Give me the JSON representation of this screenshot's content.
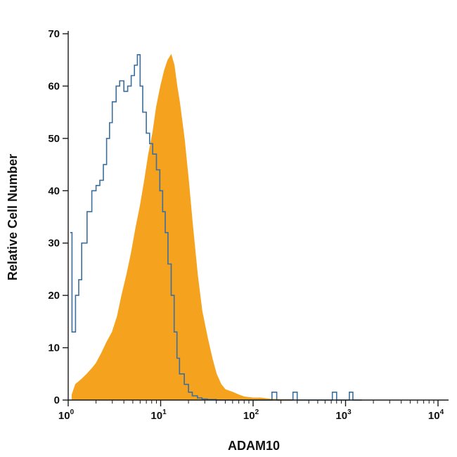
{
  "chart_data": {
    "type": "area",
    "xlabel": "ADAM10",
    "ylabel": "Relative Cell Number",
    "xscale": "log",
    "xlim": [
      1,
      10000
    ],
    "ylim": [
      0,
      70
    ],
    "x_ticks": [
      {
        "value": 1,
        "base": "10",
        "exp": "0"
      },
      {
        "value": 10,
        "base": "10",
        "exp": "1"
      },
      {
        "value": 100,
        "base": "10",
        "exp": "2"
      },
      {
        "value": 1000,
        "base": "10",
        "exp": "3"
      },
      {
        "value": 10000,
        "base": "10",
        "exp": "4"
      }
    ],
    "y_ticks": [
      "0",
      "10",
      "20",
      "30",
      "40",
      "50",
      "60",
      "70"
    ],
    "colors": {
      "filled": "#F5A21E",
      "outline": "#3C6E9E",
      "axis": "#1a1a1a"
    },
    "series": [
      {
        "style": "filled",
        "x": [
          1.1,
          1.2,
          1.4,
          1.6,
          1.8,
          2.0,
          2.3,
          2.6,
          3.0,
          3.4,
          3.8,
          4.3,
          4.8,
          5.4,
          6.0,
          6.7,
          7.4,
          8.2,
          9.0,
          10,
          11,
          12,
          13,
          14,
          15,
          16,
          18,
          20,
          22,
          25,
          28,
          32,
          36,
          40,
          45,
          50,
          60,
          70,
          80,
          100,
          120,
          150,
          200,
          250,
          300
        ],
        "y": [
          1,
          3,
          4,
          5,
          6,
          7,
          9,
          11,
          13,
          16,
          20,
          24,
          28,
          33,
          37,
          42,
          47,
          51,
          56,
          60,
          63,
          65,
          66,
          64,
          60,
          57,
          50,
          42,
          34,
          24,
          17,
          12,
          8,
          5,
          3,
          2,
          1.5,
          1,
          0.6,
          0.4,
          0.4,
          0.2,
          0.1,
          0.1,
          0
        ]
      },
      {
        "style": "outline",
        "x": [
          1.05,
          1.1,
          1.15,
          1.2,
          1.3,
          1.4,
          1.6,
          1.8,
          2.0,
          2.2,
          2.4,
          2.6,
          2.8,
          3.0,
          3.3,
          3.6,
          4.0,
          4.4,
          4.8,
          5.2,
          5.6,
          6.0,
          6.4,
          7.0,
          7.6,
          8.2,
          9.0,
          9.8,
          10.5,
          11.2,
          12,
          13,
          14,
          15,
          16,
          18,
          20,
          22,
          25,
          28,
          32,
          40,
          60,
          100,
          150,
          160,
          170,
          180,
          200,
          260,
          270,
          280,
          300,
          500,
          700,
          720,
          740,
          800,
          1000,
          1100,
          1150,
          1200,
          1500
        ],
        "y": [
          32,
          13,
          13,
          20,
          23,
          30,
          36,
          40,
          41,
          42,
          45,
          50,
          53,
          57,
          60,
          61,
          59,
          60,
          62,
          64,
          66,
          60,
          55,
          51,
          49,
          47,
          44,
          40,
          36,
          32,
          26,
          20,
          13,
          8,
          5,
          3,
          1.5,
          0.8,
          0.4,
          0.2,
          0.1,
          0,
          0,
          0,
          0,
          1.5,
          1.5,
          0,
          0,
          0,
          1.5,
          1.5,
          0,
          0,
          0,
          1.5,
          1.5,
          0,
          0,
          1.5,
          1.5,
          0,
          0
        ]
      }
    ]
  }
}
